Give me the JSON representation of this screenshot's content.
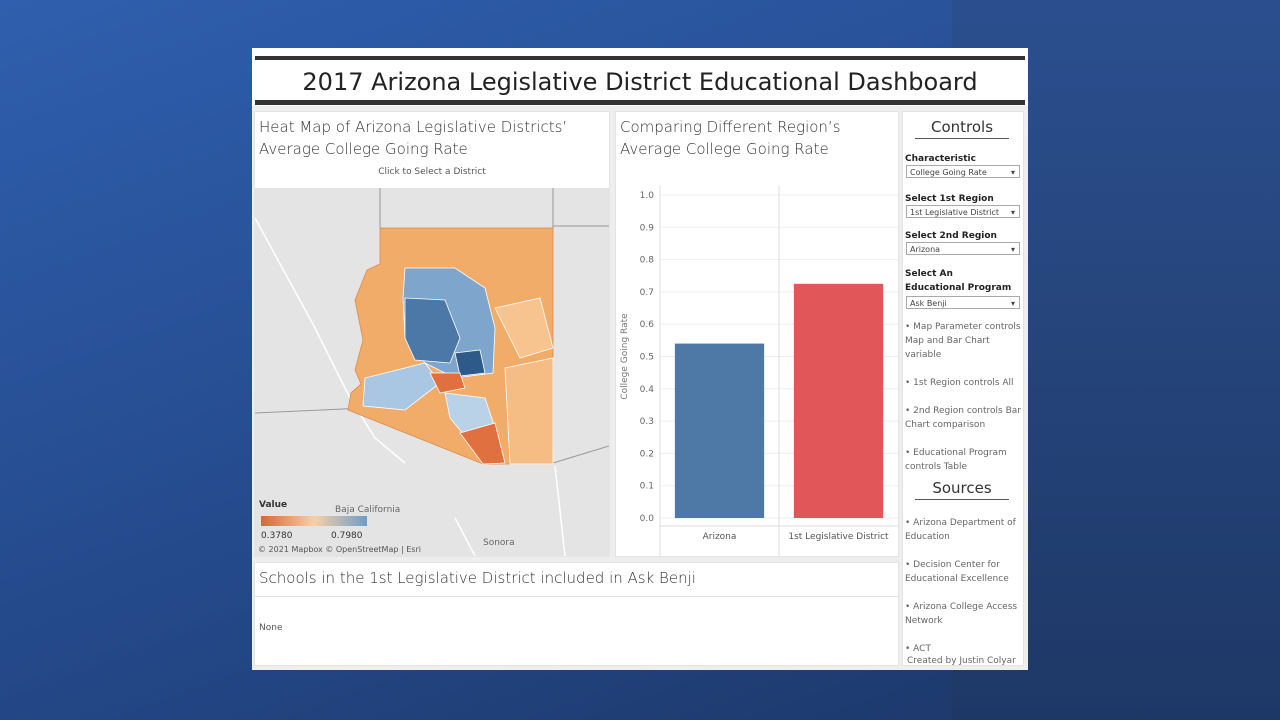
{
  "title": "2017 Arizona Legislative District Educational Dashboard",
  "map": {
    "title": "Heat Map of Arizona Legislative Districts’ Average College Going Rate",
    "subtitle": "Click to Select a District",
    "labels": [
      "Baja California",
      "Sonora"
    ],
    "legend": {
      "title": "Value",
      "min": "0.3780",
      "max": "0.7980"
    },
    "attribution": "© 2021 Mapbox © OpenStreetMap | Esri"
  },
  "chart_data": {
    "type": "bar",
    "title": "Comparing Different Region’s Average College Going Rate",
    "y_label": "College Going Rate",
    "categories": [
      "Arizona",
      "1st Legislative District"
    ],
    "values": [
      0.54,
      0.725
    ],
    "colors": [
      "#4e79a7",
      "#e15759"
    ],
    "ylim": [
      0,
      1.0
    ],
    "yticks": [
      {
        "value": 0,
        "label": "0.0"
      },
      0.1,
      0.2,
      0.3,
      0.4,
      0.5,
      0.6,
      0.7,
      0.8,
      0.9,
      {
        "value": 1.0,
        "label": "1.0"
      }
    ],
    "grid": true
  },
  "controls": {
    "heading": "Controls",
    "fields": [
      {
        "label": "Characteristic",
        "value": "College Going Rate"
      },
      {
        "label": "Select 1st Region",
        "value": "1st Legislative District"
      },
      {
        "label": "Select 2nd Region",
        "value": "Arizona"
      },
      {
        "label": "Select An Educational Program",
        "value": "Ask Benji"
      }
    ],
    "notes": [
      "• Map Parameter controls Map and Bar Chart variable",
      "• 1st Region controls All",
      "• 2nd Region controls Bar Chart comparison",
      "• Educational Program controls Table"
    ]
  },
  "sources": {
    "heading": "Sources",
    "items": [
      "• Arizona Department of Education",
      "• Decision Center for Educational Excellence",
      "• Arizona College Access Network",
      "• ACT"
    ],
    "credit": "Created by Justin Colyar"
  },
  "table": {
    "title": "Schools in the 1st Legislative District included in Ask Benji",
    "rows": [
      [
        "None"
      ]
    ]
  }
}
